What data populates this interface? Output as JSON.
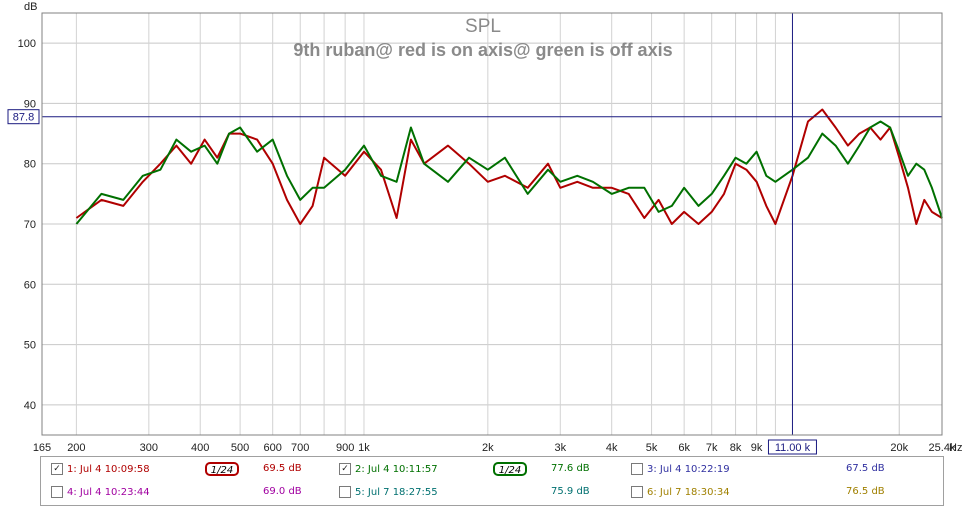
{
  "chart_data": {
    "type": "line",
    "title": "SPL",
    "subtitle": "9th ruban@ red is on axis@ green is off axis",
    "ylabel": "dB",
    "xlabel_unit": "Hz",
    "x_scale": "log",
    "xlim": [
      165,
      25400
    ],
    "ylim": [
      35,
      105
    ],
    "y_ticks": [
      40,
      50,
      60,
      70,
      80,
      90,
      100
    ],
    "x_ticks": [
      165,
      200,
      300,
      400,
      500,
      600,
      700,
      900,
      1000,
      2000,
      3000,
      4000,
      5000,
      6000,
      7000,
      8000,
      9000,
      20000,
      25400
    ],
    "x_tick_labels": [
      "165",
      "200",
      "300",
      "400",
      "500",
      "600",
      "700",
      "900",
      "1k",
      "2k",
      "3k",
      "4k",
      "5k",
      "6k",
      "7k",
      "8k",
      "9k",
      "20k",
      "25.4k"
    ],
    "cursor": {
      "x_label": "11.00 k",
      "x": 11000,
      "y_label": "87.8",
      "y": 87.8
    },
    "series": [
      {
        "color": "#b00000",
        "x": [
          200,
          230,
          260,
          290,
          320,
          350,
          380,
          410,
          440,
          470,
          500,
          550,
          600,
          650,
          700,
          750,
          800,
          900,
          1000,
          1100,
          1200,
          1300,
          1400,
          1600,
          1800,
          2000,
          2200,
          2500,
          2800,
          3000,
          3300,
          3600,
          4000,
          4400,
          4800,
          5200,
          5600,
          6000,
          6500,
          7000,
          7500,
          8000,
          8500,
          9000,
          9500,
          10000,
          11000,
          12000,
          13000,
          14000,
          15000,
          16000,
          17000,
          18000,
          19000,
          20000,
          21000,
          22000,
          23000,
          24000,
          25400
        ],
        "y": [
          71,
          74,
          73,
          77,
          80,
          83,
          80,
          84,
          81,
          85,
          85,
          84,
          80,
          74,
          70,
          73,
          81,
          78,
          82,
          79,
          71,
          84,
          80,
          83,
          80,
          77,
          78,
          76,
          80,
          76,
          77,
          76,
          76,
          75,
          71,
          74,
          70,
          72,
          70,
          72,
          75,
          80,
          79,
          77,
          73,
          70,
          78,
          87,
          89,
          86,
          83,
          85,
          86,
          84,
          86,
          81,
          76,
          70,
          74,
          72,
          71
        ]
      },
      {
        "color": "#007000",
        "x": [
          200,
          230,
          260,
          290,
          320,
          350,
          380,
          410,
          440,
          470,
          500,
          550,
          600,
          650,
          700,
          750,
          800,
          900,
          1000,
          1100,
          1200,
          1300,
          1400,
          1600,
          1800,
          2000,
          2200,
          2500,
          2800,
          3000,
          3300,
          3600,
          4000,
          4400,
          4800,
          5200,
          5600,
          6000,
          6500,
          7000,
          7500,
          8000,
          8500,
          9000,
          9500,
          10000,
          11000,
          12000,
          13000,
          14000,
          15000,
          16000,
          17000,
          18000,
          19000,
          20000,
          21000,
          22000,
          23000,
          24000,
          25400
        ],
        "y": [
          70,
          75,
          74,
          78,
          79,
          84,
          82,
          83,
          80,
          85,
          86,
          82,
          84,
          78,
          74,
          76,
          76,
          79,
          83,
          78,
          77,
          86,
          80,
          77,
          81,
          79,
          81,
          75,
          79,
          77,
          78,
          77,
          75,
          76,
          76,
          72,
          73,
          76,
          73,
          75,
          78,
          81,
          80,
          82,
          78,
          77,
          79,
          81,
          85,
          83,
          80,
          83,
          86,
          87,
          86,
          82,
          78,
          80,
          79,
          76,
          71
        ]
      }
    ],
    "legend_placement": "bottom"
  },
  "legend": [
    {
      "label": "1: Jul 4 10:09:58",
      "checked": true,
      "smoothing": "1/24",
      "value": "69.5 dB",
      "color": "#b00000"
    },
    {
      "label": "2: Jul 4 10:11:57",
      "checked": true,
      "smoothing": "1/24",
      "value": "77.6 dB",
      "color": "#007000"
    },
    {
      "label": "3: Jul 4 10:22:19",
      "checked": false,
      "value": "67.5 dB",
      "color": "#3030a0"
    },
    {
      "label": "4: Jul 4 10:23:44",
      "checked": false,
      "value": "69.0 dB",
      "color": "#a000a0"
    },
    {
      "label": "5: Jul 7 18:27:55",
      "checked": false,
      "value": "75.9 dB",
      "color": "#007070"
    },
    {
      "label": "6: Jul 7 18:30:34",
      "checked": false,
      "value": "76.5 dB",
      "color": "#a08000"
    }
  ]
}
